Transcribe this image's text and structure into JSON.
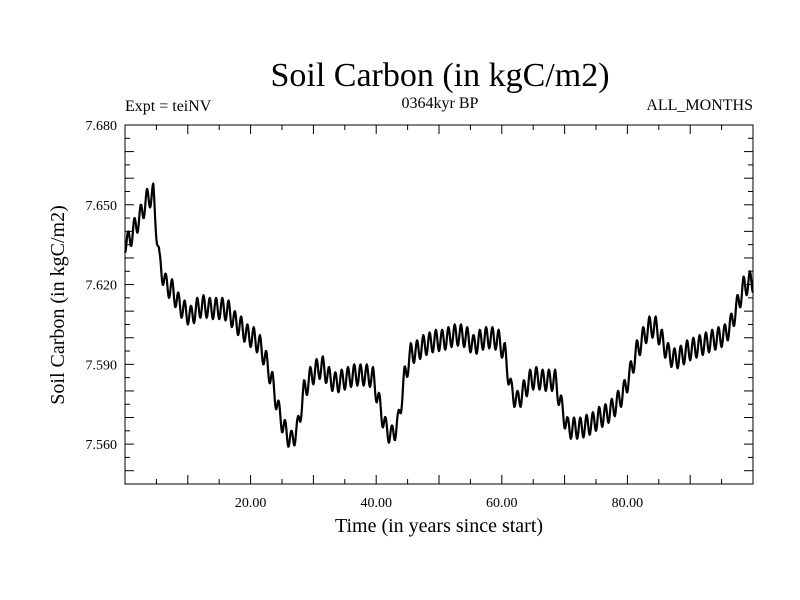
{
  "chart_data": {
    "type": "line",
    "title": "Soil Carbon (in kgC/m2)",
    "subtitle_left": "Expt = teiNV",
    "subtitle_center": "0364kyr BP",
    "subtitle_right": "ALL_MONTHS",
    "xlabel": "Time (in years since start)",
    "ylabel": "Soil Carbon (in kgC/m2)",
    "xlim": [
      0,
      100
    ],
    "ylim": [
      7.545,
      7.68
    ],
    "x_ticks": [
      {
        "value": 20,
        "label": "20.00"
      },
      {
        "value": 40,
        "label": "40.00"
      },
      {
        "value": 60,
        "label": "60.00"
      },
      {
        "value": 80,
        "label": "80.00"
      }
    ],
    "y_ticks": [
      {
        "value": 7.56,
        "label": "7.560"
      },
      {
        "value": 7.59,
        "label": "7.590"
      },
      {
        "value": 7.62,
        "label": "7.620"
      },
      {
        "value": 7.65,
        "label": "7.650"
      },
      {
        "value": 7.68,
        "label": "7.680"
      }
    ],
    "series": [
      {
        "name": "Soil Carbon",
        "color": "#000000",
        "seasonal_amplitude": 0.004,
        "samples_per_year": 12,
        "annual_mean": {
          "x": [
            0.5,
            1.5,
            2.5,
            3.5,
            4.5,
            5.5,
            6.5,
            7.5,
            8.5,
            9.5,
            10.5,
            11.5,
            12.5,
            13.5,
            14.5,
            15.5,
            16.5,
            17.5,
            18.5,
            19.5,
            20.5,
            21.5,
            22.5,
            23.5,
            24.5,
            25.5,
            26.5,
            27.5,
            28.5,
            29.5,
            30.5,
            31.5,
            32.5,
            33.5,
            34.5,
            35.5,
            36.5,
            37.5,
            38.5,
            39.5,
            40.5,
            41.5,
            42.5,
            43.5,
            44.5,
            45.5,
            46.5,
            47.5,
            48.5,
            49.5,
            50.5,
            51.5,
            52.5,
            53.5,
            54.5,
            55.5,
            56.5,
            57.5,
            58.5,
            59.5,
            60.5,
            61.5,
            62.5,
            63.5,
            64.5,
            65.5,
            66.5,
            67.5,
            68.5,
            69.5,
            70.5,
            71.5,
            72.5,
            73.5,
            74.5,
            75.5,
            76.5,
            77.5,
            78.5,
            79.5,
            80.5,
            81.5,
            82.5,
            83.5,
            84.5,
            85.5,
            86.5,
            87.5,
            88.5,
            89.5,
            90.5,
            91.5,
            92.5,
            93.5,
            94.5,
            95.5,
            96.5,
            97.5,
            98.5,
            99.5
          ],
          "y": [
            7.636,
            7.641,
            7.646,
            7.652,
            7.654,
            7.628,
            7.62,
            7.618,
            7.613,
            7.61,
            7.608,
            7.611,
            7.612,
            7.611,
            7.611,
            7.611,
            7.61,
            7.606,
            7.604,
            7.601,
            7.6,
            7.597,
            7.591,
            7.583,
            7.572,
            7.565,
            7.561,
            7.566,
            7.58,
            7.585,
            7.588,
            7.589,
            7.585,
            7.583,
            7.584,
            7.585,
            7.586,
            7.586,
            7.586,
            7.585,
            7.575,
            7.566,
            7.563,
            7.568,
            7.585,
            7.594,
            7.595,
            7.597,
            7.598,
            7.599,
            7.599,
            7.6,
            7.601,
            7.601,
            7.6,
            7.597,
            7.599,
            7.6,
            7.6,
            7.599,
            7.594,
            7.58,
            7.576,
            7.58,
            7.584,
            7.585,
            7.584,
            7.584,
            7.584,
            7.574,
            7.566,
            7.566,
            7.566,
            7.567,
            7.568,
            7.57,
            7.571,
            7.573,
            7.576,
            7.58,
            7.587,
            7.595,
            7.6,
            7.604,
            7.604,
            7.599,
            7.594,
            7.592,
            7.593,
            7.595,
            7.596,
            7.597,
            7.598,
            7.599,
            7.6,
            7.601,
            7.605,
            7.612,
            7.619,
            7.621
          ]
        }
      }
    ]
  }
}
